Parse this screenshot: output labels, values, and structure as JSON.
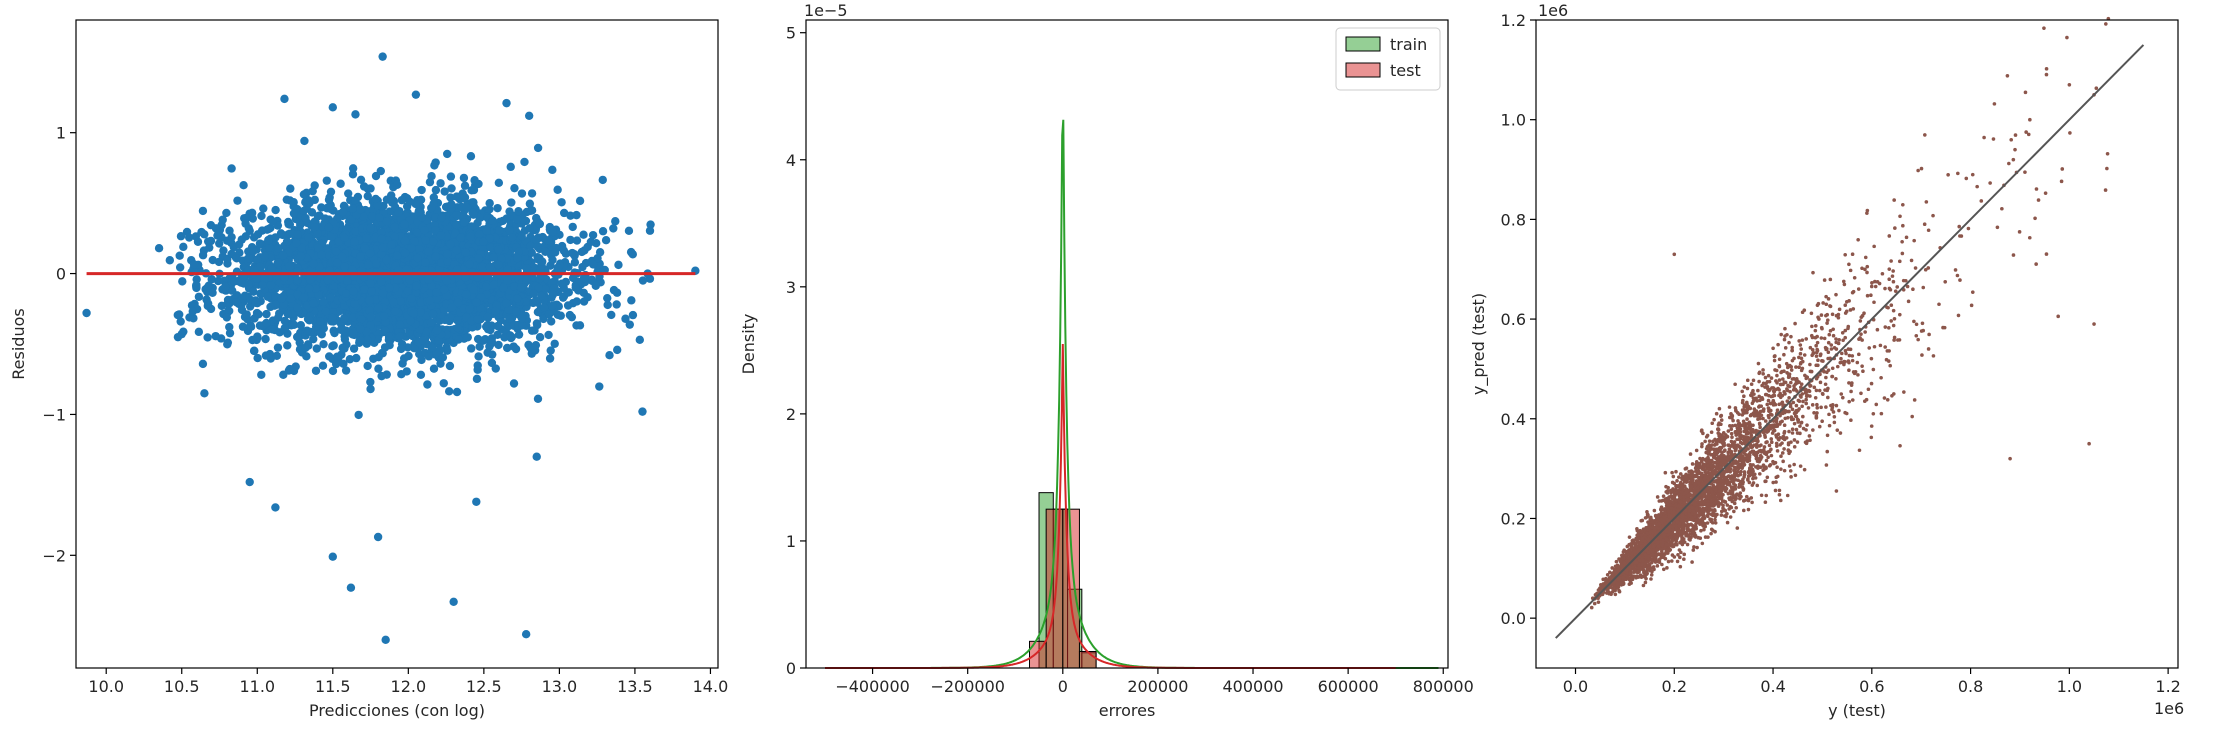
{
  "chart_data": [
    {
      "type": "scatter",
      "title": "",
      "xlabel": "Predicciones (con log)",
      "ylabel": "Residuos",
      "xlim": [
        9.8,
        14.05
      ],
      "ylim": [
        -2.8,
        1.8
      ],
      "xticks": [
        10.0,
        10.5,
        11.0,
        11.5,
        12.0,
        12.5,
        13.0,
        13.5,
        14.0
      ],
      "xtick_labels": [
        "10.0",
        "10.5",
        "11.0",
        "11.5",
        "12.0",
        "12.5",
        "13.0",
        "13.5",
        "14.0"
      ],
      "yticks": [
        -2,
        -1,
        0,
        1
      ],
      "ytick_labels": [
        "−2",
        "−1",
        "0",
        "1"
      ],
      "grid": false,
      "series": [
        {
          "kind": "points",
          "color": "#1f77b4",
          "cloud": {
            "x_center": 11.95,
            "x_sd": 0.55,
            "y_sd": 0.26,
            "x_range": [
              10.4,
              13.9
            ]
          },
          "outliers": [
            {
              "x": 9.87,
              "y": -0.28
            },
            {
              "x": 11.83,
              "y": 1.54
            },
            {
              "x": 12.05,
              "y": 1.27
            },
            {
              "x": 11.18,
              "y": 1.24
            },
            {
              "x": 12.65,
              "y": 1.21
            },
            {
              "x": 11.5,
              "y": 1.18
            },
            {
              "x": 12.8,
              "y": 1.12
            },
            {
              "x": 11.65,
              "y": 1.13
            },
            {
              "x": 11.5,
              "y": -2.01
            },
            {
              "x": 11.62,
              "y": -2.23
            },
            {
              "x": 11.8,
              "y": -1.87
            },
            {
              "x": 12.3,
              "y": -2.33
            },
            {
              "x": 11.85,
              "y": -2.6
            },
            {
              "x": 12.78,
              "y": -2.56
            },
            {
              "x": 11.12,
              "y": -1.66
            },
            {
              "x": 12.45,
              "y": -1.62
            },
            {
              "x": 10.95,
              "y": -1.48
            },
            {
              "x": 12.85,
              "y": -1.3
            },
            {
              "x": 10.65,
              "y": -0.85
            },
            {
              "x": 10.5,
              "y": -0.43
            },
            {
              "x": 10.35,
              "y": 0.18
            },
            {
              "x": 13.55,
              "y": -0.98
            },
            {
              "x": 13.9,
              "y": 0.02
            }
          ]
        },
        {
          "kind": "line",
          "color": "#d62728",
          "points": [
            {
              "x": 9.87,
              "y": 0
            },
            {
              "x": 13.9,
              "y": 0
            }
          ]
        }
      ]
    },
    {
      "type": "bar",
      "subtype": "histogram with KDE",
      "title": "",
      "xlabel": "errores",
      "ylabel": "Density",
      "offset_text": "1e−5",
      "xlim": [
        -540000,
        810000
      ],
      "ylim": [
        0,
        5.1e-05
      ],
      "xticks": [
        -400000,
        -200000,
        0,
        200000,
        400000,
        600000,
        800000
      ],
      "xtick_labels": [
        "−400000",
        "−200000",
        "0",
        "200000",
        "400000",
        "600000",
        "800000"
      ],
      "yticks": [
        0,
        1e-05,
        2e-05,
        3e-05,
        4e-05,
        5e-05
      ],
      "ytick_labels": [
        "0",
        "1",
        "2",
        "3",
        "4",
        "5"
      ],
      "grid": false,
      "legend": "top-right",
      "series": [
        {
          "name": "train",
          "color": "#2ca02c",
          "bins": [
            {
              "x0": -50000,
              "x1": -20000,
              "y": 1.38e-05
            },
            {
              "x0": -20000,
              "x1": 10000,
              "y": 1.25e-05
            },
            {
              "x0": 10000,
              "x1": 40000,
              "y": 6.2e-06
            },
            {
              "x0": 40000,
              "x1": 70000,
              "y": 1.2e-06
            }
          ],
          "kde_peak": {
            "x": 0,
            "y": 4.82e-05
          },
          "kde_range": [
            -500000,
            790000
          ]
        },
        {
          "name": "test",
          "color": "#d62728",
          "bins": [
            {
              "x0": -70000,
              "x1": -35000,
              "y": 2.1e-06
            },
            {
              "x0": -35000,
              "x1": 0,
              "y": 1.25e-05
            },
            {
              "x0": 0,
              "x1": 35000,
              "y": 1.25e-05
            },
            {
              "x0": 35000,
              "x1": 70000,
              "y": 1.3e-06
            }
          ],
          "kde_peak": {
            "x": 0,
            "y": 2.55e-05
          },
          "kde_range": [
            -500000,
            700000
          ]
        }
      ]
    },
    {
      "type": "scatter",
      "title": "",
      "xlabel": "y (test)",
      "ylabel": "y_pred (test)",
      "x_offset_text": "1e6",
      "y_offset_text": "1e6",
      "xlim": [
        -80000,
        1220000
      ],
      "ylim": [
        -100000,
        1200000
      ],
      "xticks": [
        0,
        200000,
        400000,
        600000,
        800000,
        1000000,
        1200000
      ],
      "xtick_labels": [
        "0.0",
        "0.2",
        "0.4",
        "0.6",
        "0.8",
        "1.0",
        "1.2"
      ],
      "yticks": [
        0,
        200000,
        400000,
        600000,
        800000,
        1000000,
        1200000
      ],
      "ytick_labels": [
        "0.0",
        "0.2",
        "0.4",
        "0.6",
        "0.8",
        "1.0",
        "1.2"
      ],
      "grid": false,
      "series": [
        {
          "kind": "points",
          "color": "#8c564b",
          "cloud": {
            "x_range": [
              30000,
              1080000
            ],
            "relation": "y_pred ≈ y"
          },
          "outliers": [
            {
              "x": 1000000,
              "y": 1070000
            },
            {
              "x": 920000,
              "y": 1000000
            },
            {
              "x": 1050000,
              "y": 1050000
            },
            {
              "x": 1040000,
              "y": 350000
            },
            {
              "x": 200000,
              "y": 730000
            },
            {
              "x": 880000,
              "y": 320000
            },
            {
              "x": 1050000,
              "y": 590000
            }
          ]
        },
        {
          "kind": "line",
          "color": "#555555",
          "points": [
            {
              "x": -40000,
              "y": -40000
            },
            {
              "x": 1150000,
              "y": 1150000
            }
          ]
        }
      ]
    }
  ]
}
